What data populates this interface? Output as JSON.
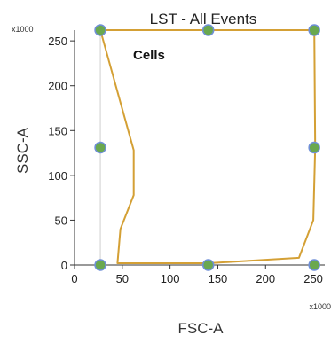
{
  "chart_data": {
    "type": "scatter",
    "title": "LST - All Events",
    "xlabel": "FSC-A",
    "ylabel": "SSC-A",
    "x_multiplier": "x1000",
    "y_multiplier": "x1000",
    "xlim": [
      0,
      262
    ],
    "ylim": [
      0,
      262
    ],
    "x_ticks": [
      0,
      50,
      100,
      150,
      200,
      250
    ],
    "y_ticks": [
      0,
      50,
      100,
      150,
      200,
      250
    ],
    "x_tick_labels": [
      "0",
      "50",
      "100",
      "150",
      "200",
      "250"
    ],
    "y_tick_labels": [
      "0",
      "50",
      "100",
      "150",
      "200",
      "250"
    ],
    "gate": {
      "name": "Cells",
      "color": "#d4a035",
      "vertices": [
        [
          27,
          262
        ],
        [
          140,
          262
        ],
        [
          251,
          262
        ],
        [
          252,
          131
        ],
        [
          250,
          50
        ],
        [
          235,
          8
        ],
        [
          140,
          2
        ],
        [
          45,
          2
        ],
        [
          48,
          40
        ],
        [
          62,
          78
        ],
        [
          62,
          128
        ]
      ]
    },
    "handles": {
      "color": "#6aa84f",
      "edge_color": "#6f8fd8",
      "points": [
        [
          27,
          262
        ],
        [
          140,
          262
        ],
        [
          251,
          262
        ],
        [
          27,
          131
        ],
        [
          251,
          131
        ],
        [
          27,
          0
        ],
        [
          140,
          0
        ],
        [
          251,
          0
        ]
      ]
    },
    "reference_line": {
      "x": 27,
      "color": "#cfcfcf"
    },
    "grid": false
  }
}
